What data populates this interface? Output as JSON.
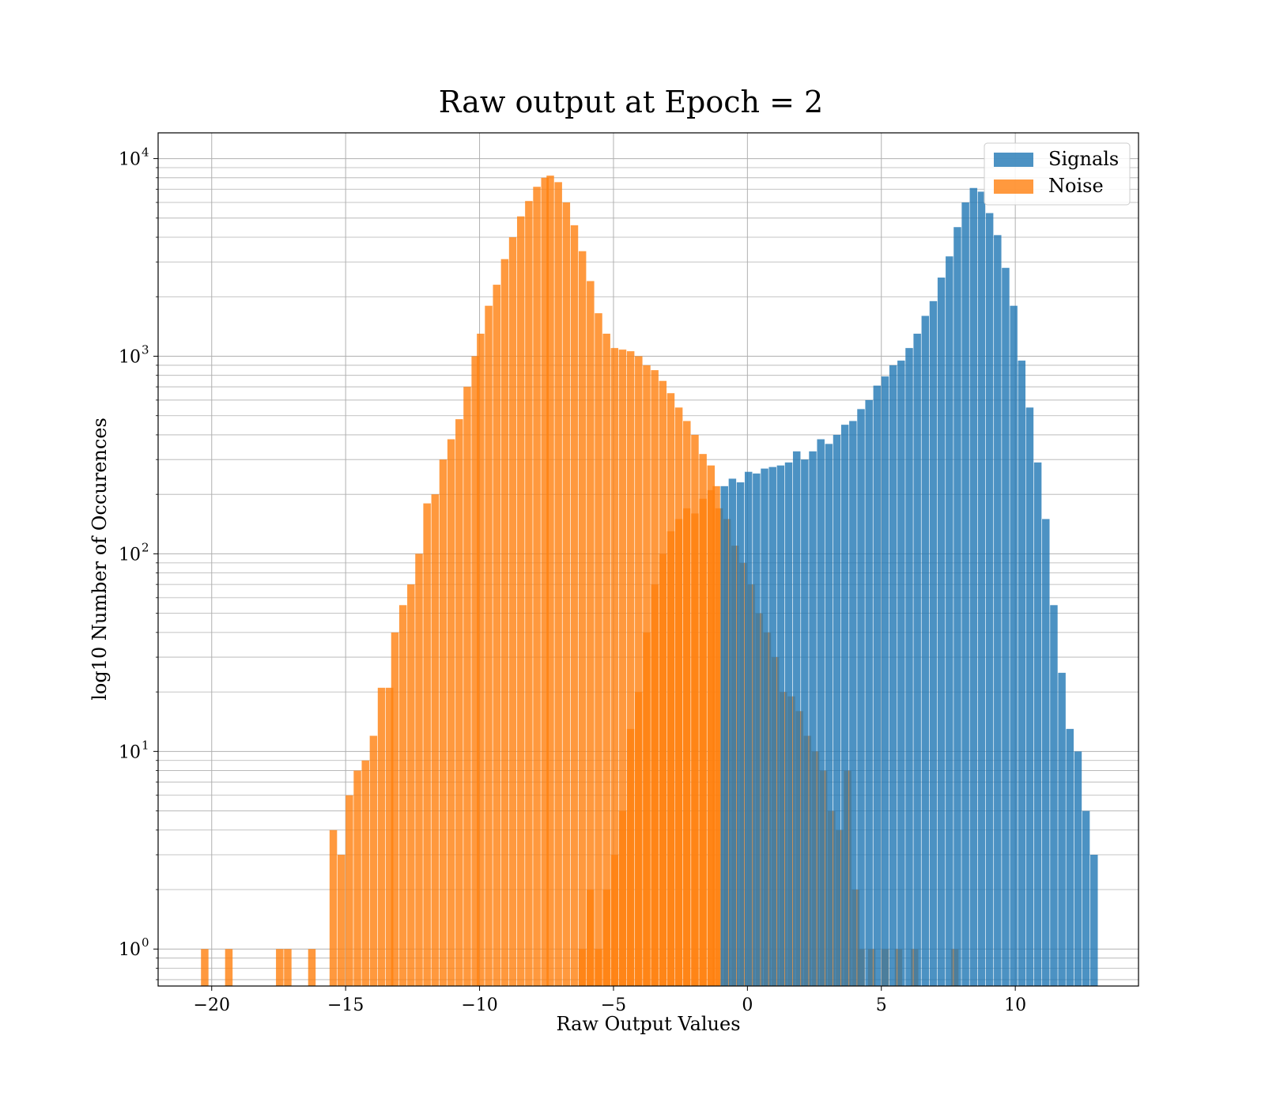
{
  "chart_data": {
    "type": "bar",
    "title": "Raw output at Epoch = 2",
    "xlabel": "Raw Output Values",
    "ylabel": "log10 Number of Occurences",
    "xlim": [
      -22,
      14.6
    ],
    "ylim": [
      0.65,
      13500
    ],
    "yscale": "log",
    "grid": true,
    "legend": "top-right",
    "x_ticks": [
      {
        "value": -20,
        "label": "−20"
      },
      {
        "value": -15,
        "label": "−15"
      },
      {
        "value": -10,
        "label": "−10"
      },
      {
        "value": -5,
        "label": "−5"
      },
      {
        "value": 0,
        "label": "0"
      },
      {
        "value": 5,
        "label": "5"
      },
      {
        "value": 10,
        "label": "10"
      }
    ],
    "y_ticks": [
      {
        "value": 1,
        "base": "10",
        "exp": "0"
      },
      {
        "value": 10,
        "base": "10",
        "exp": "1"
      },
      {
        "value": 100,
        "base": "10",
        "exp": "2"
      },
      {
        "value": 1000,
        "base": "10",
        "exp": "3"
      },
      {
        "value": 10000,
        "base": "10",
        "exp": "4"
      }
    ],
    "series": [
      {
        "name": "Noise",
        "color": "#ff7f0e",
        "opacity": 0.8,
        "bin_width": 0.28,
        "bins": [
          [
            -20.4,
            1
          ],
          [
            -19.5,
            1
          ],
          [
            -17.6,
            1
          ],
          [
            -17.3,
            1
          ],
          [
            -16.4,
            1
          ],
          [
            -15.6,
            4
          ],
          [
            -15.3,
            3
          ],
          [
            -15.0,
            6
          ],
          [
            -14.7,
            8
          ],
          [
            -14.4,
            9
          ],
          [
            -14.1,
            12
          ],
          [
            -13.8,
            21
          ],
          [
            -13.5,
            21
          ],
          [
            -13.3,
            40
          ],
          [
            -13.0,
            55
          ],
          [
            -12.7,
            70
          ],
          [
            -12.4,
            100
          ],
          [
            -12.1,
            180
          ],
          [
            -11.8,
            200
          ],
          [
            -11.5,
            300
          ],
          [
            -11.2,
            380
          ],
          [
            -10.9,
            480
          ],
          [
            -10.6,
            700
          ],
          [
            -10.3,
            1000
          ],
          [
            -10.1,
            1300
          ],
          [
            -9.8,
            1800
          ],
          [
            -9.5,
            2300
          ],
          [
            -9.2,
            3100
          ],
          [
            -8.9,
            4000
          ],
          [
            -8.6,
            5100
          ],
          [
            -8.3,
            6100
          ],
          [
            -8.0,
            7200
          ],
          [
            -7.7,
            8000
          ],
          [
            -7.5,
            8200
          ],
          [
            -7.2,
            7600
          ],
          [
            -6.9,
            6000
          ],
          [
            -6.6,
            4600
          ],
          [
            -6.3,
            3400
          ],
          [
            -6.0,
            2400
          ],
          [
            -5.7,
            1650
          ],
          [
            -5.4,
            1300
          ],
          [
            -5.1,
            1100
          ],
          [
            -4.8,
            1080
          ],
          [
            -4.5,
            1060
          ],
          [
            -4.2,
            1000
          ],
          [
            -3.9,
            900
          ],
          [
            -3.6,
            850
          ],
          [
            -3.3,
            750
          ],
          [
            -3.0,
            650
          ],
          [
            -2.7,
            550
          ],
          [
            -2.4,
            470
          ],
          [
            -2.1,
            400
          ],
          [
            -1.8,
            320
          ],
          [
            -1.5,
            280
          ],
          [
            -1.3,
            220
          ],
          [
            -6.3,
            1
          ],
          [
            -6.0,
            2
          ],
          [
            -5.7,
            1
          ],
          [
            -5.4,
            2
          ],
          [
            -5.1,
            3
          ],
          [
            -4.8,
            5
          ],
          [
            -4.5,
            13
          ],
          [
            -4.2,
            20
          ],
          [
            -3.9,
            40
          ],
          [
            -3.6,
            70
          ],
          [
            -3.3,
            100
          ],
          [
            -3.0,
            130
          ],
          [
            -2.7,
            150
          ],
          [
            -2.4,
            170
          ],
          [
            -2.1,
            160
          ],
          [
            -1.8,
            190
          ],
          [
            -1.5,
            210
          ],
          [
            -1.2,
            170
          ],
          [
            -0.9,
            150
          ],
          [
            -0.6,
            110
          ],
          [
            -0.3,
            90
          ],
          [
            0.0,
            70
          ],
          [
            0.3,
            50
          ],
          [
            0.6,
            40
          ],
          [
            0.9,
            30
          ],
          [
            1.2,
            20
          ],
          [
            1.5,
            19
          ],
          [
            1.8,
            16
          ],
          [
            2.1,
            12
          ],
          [
            2.4,
            10
          ],
          [
            2.7,
            8
          ],
          [
            3.0,
            5
          ],
          [
            3.3,
            4
          ],
          [
            3.6,
            8
          ],
          [
            3.9,
            2
          ],
          [
            4.1,
            1
          ],
          [
            4.5,
            1
          ],
          [
            5.0,
            1
          ],
          [
            5.5,
            1
          ],
          [
            6.1,
            1
          ],
          [
            7.6,
            1
          ]
        ]
      },
      {
        "name": "Signals",
        "color": "#1f77b4",
        "opacity": 0.8,
        "bin_width": 0.28,
        "bins": [
          [
            -1.0,
            220
          ],
          [
            -0.7,
            240
          ],
          [
            -0.4,
            230
          ],
          [
            -0.1,
            260
          ],
          [
            0.2,
            255
          ],
          [
            0.5,
            270
          ],
          [
            0.8,
            275
          ],
          [
            1.1,
            280
          ],
          [
            1.4,
            290
          ],
          [
            1.7,
            330
          ],
          [
            2.0,
            300
          ],
          [
            2.3,
            330
          ],
          [
            2.6,
            380
          ],
          [
            2.9,
            360
          ],
          [
            3.2,
            400
          ],
          [
            3.5,
            450
          ],
          [
            3.8,
            470
          ],
          [
            4.1,
            540
          ],
          [
            4.4,
            600
          ],
          [
            4.7,
            710
          ],
          [
            5.0,
            790
          ],
          [
            5.3,
            900
          ],
          [
            5.6,
            950
          ],
          [
            5.9,
            1100
          ],
          [
            6.2,
            1300
          ],
          [
            6.5,
            1600
          ],
          [
            6.8,
            1900
          ],
          [
            7.1,
            2500
          ],
          [
            7.4,
            3200
          ],
          [
            7.7,
            4500
          ],
          [
            8.0,
            6000
          ],
          [
            8.3,
            7100
          ],
          [
            8.6,
            6800
          ],
          [
            8.9,
            5300
          ],
          [
            9.2,
            4100
          ],
          [
            9.5,
            2800
          ],
          [
            9.8,
            1800
          ],
          [
            10.1,
            950
          ],
          [
            10.4,
            550
          ],
          [
            10.7,
            290
          ],
          [
            11.0,
            150
          ],
          [
            11.3,
            55
          ],
          [
            11.6,
            25
          ],
          [
            11.9,
            13
          ],
          [
            12.2,
            10
          ],
          [
            12.5,
            5
          ],
          [
            12.8,
            3
          ]
        ]
      }
    ]
  }
}
